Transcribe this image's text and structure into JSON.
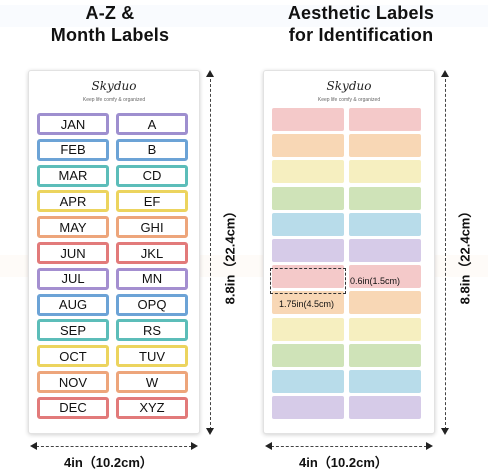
{
  "left_panel": {
    "title_line1": "A-Z &",
    "title_line2": "Month Labels",
    "brand": "Skyduo",
    "tagline": "Keep life comfy & organized",
    "height_dim": "8.8in（22.4cm）",
    "width_dim": "4in（10.2cm）",
    "rows": [
      {
        "left": "JAN",
        "right": "A",
        "color": "#9e8fcf"
      },
      {
        "left": "FEB",
        "right": "B",
        "color": "#6ca3d6"
      },
      {
        "left": "MAR",
        "right": "CD",
        "color": "#5cbdb9"
      },
      {
        "left": "APR",
        "right": "EF",
        "color": "#ecd45e"
      },
      {
        "left": "MAY",
        "right": "GHI",
        "color": "#eda57b"
      },
      {
        "left": "JUN",
        "right": "JKL",
        "color": "#e27a7a"
      },
      {
        "left": "JUL",
        "right": "MN",
        "color": "#a48fd0"
      },
      {
        "left": "AUG",
        "right": "OPQ",
        "color": "#6ca3d6"
      },
      {
        "left": "SEP",
        "right": "RS",
        "color": "#5cbdb9"
      },
      {
        "left": "OCT",
        "right": "TUV",
        "color": "#ecd45e"
      },
      {
        "left": "NOV",
        "right": "W",
        "color": "#eda57b"
      },
      {
        "left": "DEC",
        "right": "XYZ",
        "color": "#e27a7a"
      }
    ]
  },
  "right_panel": {
    "title_line1": "Aesthetic Labels",
    "title_line2": "for Identification",
    "brand": "Skyduo",
    "tagline": "Keep life comfy & organized",
    "height_dim": "8.8in（22.4cm）",
    "width_dim": "4in（10.2cm）",
    "label_height": "0.6in(1.5cm)",
    "label_width": "1.75in(4.5cm)",
    "row_colors": [
      "#f4c9c9",
      "#f8d7b5",
      "#f6efc0",
      "#cfe3b8",
      "#b8dcea",
      "#d6cbe8",
      "#f4c9c9",
      "#f8d7b5",
      "#f6efc0",
      "#cfe3b8",
      "#b8dcea",
      "#d6cbe8"
    ]
  }
}
